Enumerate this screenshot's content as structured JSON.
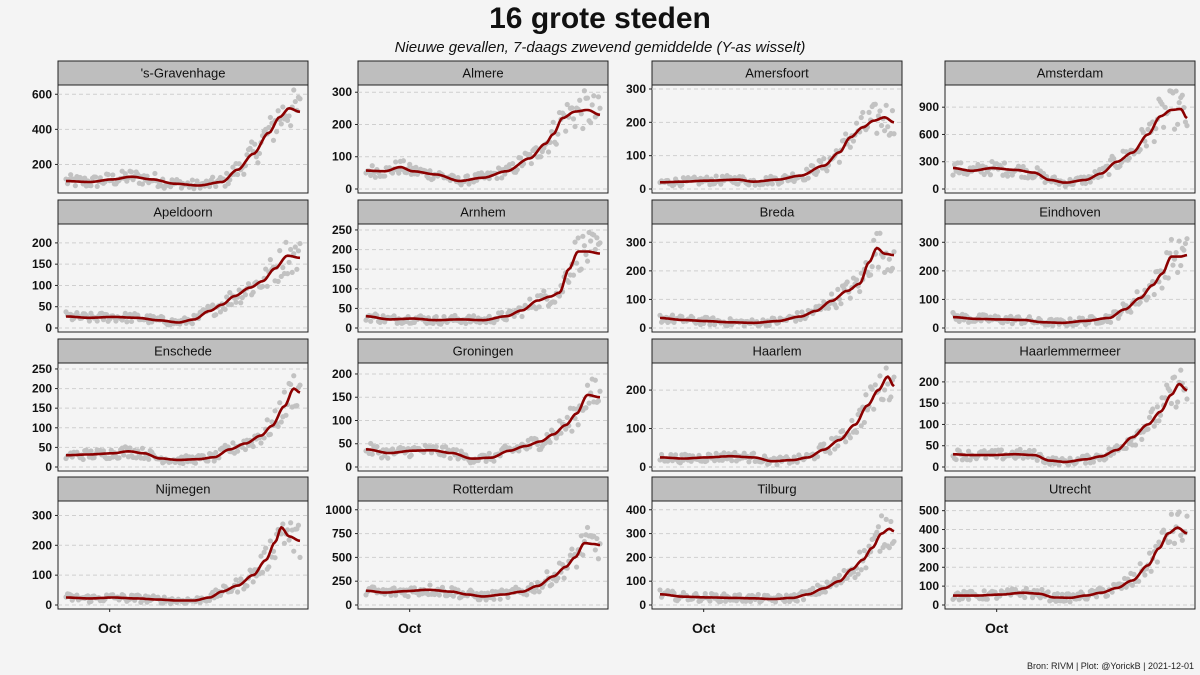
{
  "title": "16 grote steden",
  "subtitle": "Nieuwe gevallen, 7-daags zwevend gemiddelde (Y-as wisselt)",
  "source": "Bron: RIVM | Plot: @YorickB |  2021-12-01",
  "colors": {
    "line": "#8b0000",
    "points": "#c2c2c2",
    "strip": "#bebebe",
    "panel": "#f4f4f4",
    "grid": "#cfcfcf"
  },
  "chart_data": {
    "type": "line",
    "x_tick_label": "Oct",
    "x_range_days": [
      0,
      150
    ],
    "oct_day": 28,
    "grid": "horizontal dashed",
    "facets": [
      {
        "name": "'s-Gravenhage",
        "yticks": [
          200,
          400,
          600
        ],
        "ylim": [
          60,
          630
        ],
        "keypoints": [
          [
            0,
            105
          ],
          [
            15,
            100
          ],
          [
            30,
            115
          ],
          [
            42,
            130
          ],
          [
            55,
            115
          ],
          [
            70,
            90
          ],
          [
            85,
            80
          ],
          [
            100,
            100
          ],
          [
            110,
            170
          ],
          [
            120,
            260
          ],
          [
            130,
            380
          ],
          [
            137,
            470
          ],
          [
            143,
            520
          ],
          [
            150,
            500
          ]
        ]
      },
      {
        "name": "Almere",
        "yticks": [
          0,
          100,
          200,
          300
        ],
        "ylim": [
          0,
          310
        ],
        "keypoints": [
          [
            0,
            57
          ],
          [
            12,
            55
          ],
          [
            22,
            68
          ],
          [
            30,
            55
          ],
          [
            45,
            45
          ],
          [
            60,
            25
          ],
          [
            75,
            35
          ],
          [
            90,
            55
          ],
          [
            105,
            95
          ],
          [
            115,
            140
          ],
          [
            120,
            170
          ],
          [
            126,
            220
          ],
          [
            134,
            240
          ],
          [
            142,
            245
          ],
          [
            150,
            230
          ]
        ]
      },
      {
        "name": "Amersfoort",
        "yticks": [
          0,
          100,
          200,
          300
        ],
        "ylim": [
          0,
          300
        ],
        "keypoints": [
          [
            0,
            20
          ],
          [
            15,
            22
          ],
          [
            30,
            25
          ],
          [
            50,
            28
          ],
          [
            60,
            22
          ],
          [
            75,
            28
          ],
          [
            90,
            40
          ],
          [
            105,
            70
          ],
          [
            115,
            110
          ],
          [
            122,
            155
          ],
          [
            130,
            185
          ],
          [
            137,
            205
          ],
          [
            144,
            215
          ],
          [
            150,
            200
          ]
        ]
      },
      {
        "name": "Amsterdam",
        "yticks": [
          0,
          300,
          600,
          900
        ],
        "ylim": [
          0,
          1100
        ],
        "keypoints": [
          [
            0,
            230
          ],
          [
            12,
            200
          ],
          [
            25,
            230
          ],
          [
            40,
            210
          ],
          [
            52,
            180
          ],
          [
            62,
            100
          ],
          [
            72,
            70
          ],
          [
            85,
            100
          ],
          [
            95,
            170
          ],
          [
            105,
            300
          ],
          [
            115,
            400
          ],
          [
            125,
            600
          ],
          [
            133,
            800
          ],
          [
            140,
            870
          ],
          [
            146,
            880
          ],
          [
            150,
            780
          ]
        ]
      },
      {
        "name": "Apeldoorn",
        "yticks": [
          0,
          50,
          100,
          150,
          200
        ],
        "ylim": [
          0,
          235
        ],
        "keypoints": [
          [
            0,
            27
          ],
          [
            15,
            24
          ],
          [
            30,
            26
          ],
          [
            45,
            24
          ],
          [
            60,
            18
          ],
          [
            72,
            13
          ],
          [
            82,
            20
          ],
          [
            92,
            40
          ],
          [
            100,
            55
          ],
          [
            108,
            75
          ],
          [
            118,
            95
          ],
          [
            126,
            110
          ],
          [
            134,
            140
          ],
          [
            142,
            170
          ],
          [
            150,
            165
          ]
        ]
      },
      {
        "name": "Arnhem",
        "yticks": [
          0,
          50,
          100,
          150,
          200,
          250
        ],
        "ylim": [
          0,
          255
        ],
        "keypoints": [
          [
            0,
            30
          ],
          [
            15,
            22
          ],
          [
            30,
            24
          ],
          [
            45,
            20
          ],
          [
            60,
            22
          ],
          [
            75,
            20
          ],
          [
            90,
            30
          ],
          [
            100,
            45
          ],
          [
            110,
            70
          ],
          [
            118,
            80
          ],
          [
            124,
            90
          ],
          [
            130,
            150
          ],
          [
            136,
            195
          ],
          [
            142,
            195
          ],
          [
            150,
            190
          ]
        ]
      },
      {
        "name": "Breda",
        "yticks": [
          0,
          100,
          200,
          300
        ],
        "ylim": [
          0,
          350
        ],
        "keypoints": [
          [
            0,
            35
          ],
          [
            15,
            28
          ],
          [
            30,
            24
          ],
          [
            45,
            20
          ],
          [
            60,
            18
          ],
          [
            75,
            24
          ],
          [
            90,
            40
          ],
          [
            100,
            60
          ],
          [
            110,
            95
          ],
          [
            120,
            130
          ],
          [
            128,
            155
          ],
          [
            134,
            230
          ],
          [
            139,
            280
          ],
          [
            144,
            260
          ],
          [
            150,
            255
          ]
        ]
      },
      {
        "name": "Eindhoven",
        "yticks": [
          0,
          100,
          200,
          300
        ],
        "ylim": [
          0,
          350
        ],
        "keypoints": [
          [
            0,
            38
          ],
          [
            15,
            32
          ],
          [
            30,
            30
          ],
          [
            45,
            28
          ],
          [
            58,
            20
          ],
          [
            70,
            18
          ],
          [
            85,
            25
          ],
          [
            100,
            35
          ],
          [
            110,
            65
          ],
          [
            120,
            105
          ],
          [
            128,
            150
          ],
          [
            134,
            190
          ],
          [
            140,
            250
          ],
          [
            146,
            250
          ],
          [
            150,
            255
          ]
        ]
      },
      {
        "name": "Enschede",
        "yticks": [
          0,
          50,
          100,
          150,
          200,
          250
        ],
        "ylim": [
          0,
          255
        ],
        "keypoints": [
          [
            0,
            30
          ],
          [
            15,
            32
          ],
          [
            30,
            35
          ],
          [
            40,
            40
          ],
          [
            50,
            35
          ],
          [
            60,
            22
          ],
          [
            72,
            18
          ],
          [
            85,
            20
          ],
          [
            95,
            25
          ],
          [
            105,
            45
          ],
          [
            115,
            60
          ],
          [
            125,
            80
          ],
          [
            132,
            105
          ],
          [
            140,
            155
          ],
          [
            146,
            200
          ],
          [
            150,
            190
          ]
        ]
      },
      {
        "name": "Groningen",
        "yticks": [
          0,
          50,
          100,
          150,
          200
        ],
        "ylim": [
          0,
          215
        ],
        "keypoints": [
          [
            0,
            38
          ],
          [
            15,
            30
          ],
          [
            30,
            35
          ],
          [
            42,
            36
          ],
          [
            55,
            30
          ],
          [
            68,
            18
          ],
          [
            80,
            20
          ],
          [
            92,
            35
          ],
          [
            102,
            45
          ],
          [
            112,
            55
          ],
          [
            120,
            70
          ],
          [
            128,
            90
          ],
          [
            135,
            115
          ],
          [
            142,
            155
          ],
          [
            150,
            150
          ]
        ]
      },
      {
        "name": "Haarlem",
        "yticks": [
          0,
          100,
          200
        ],
        "ylim": [
          0,
          260
        ],
        "keypoints": [
          [
            0,
            25
          ],
          [
            15,
            22
          ],
          [
            30,
            25
          ],
          [
            45,
            28
          ],
          [
            60,
            25
          ],
          [
            72,
            15
          ],
          [
            85,
            18
          ],
          [
            95,
            25
          ],
          [
            105,
            45
          ],
          [
            115,
            70
          ],
          [
            125,
            110
          ],
          [
            133,
            160
          ],
          [
            140,
            200
          ],
          [
            146,
            235
          ],
          [
            150,
            210
          ]
        ]
      },
      {
        "name": "Haarlemmermeer",
        "yticks": [
          0,
          50,
          100,
          150,
          200
        ],
        "ylim": [
          0,
          235
        ],
        "keypoints": [
          [
            0,
            30
          ],
          [
            12,
            28
          ],
          [
            25,
            28
          ],
          [
            40,
            30
          ],
          [
            52,
            28
          ],
          [
            62,
            15
          ],
          [
            72,
            12
          ],
          [
            85,
            18
          ],
          [
            95,
            25
          ],
          [
            105,
            40
          ],
          [
            115,
            70
          ],
          [
            125,
            100
          ],
          [
            133,
            130
          ],
          [
            140,
            170
          ],
          [
            145,
            195
          ],
          [
            150,
            180
          ]
        ]
      },
      {
        "name": "Nijmegen",
        "yticks": [
          0,
          100,
          200,
          300
        ],
        "ylim": [
          0,
          335
        ],
        "keypoints": [
          [
            0,
            25
          ],
          [
            15,
            22
          ],
          [
            30,
            25
          ],
          [
            45,
            22
          ],
          [
            60,
            18
          ],
          [
            72,
            15
          ],
          [
            82,
            15
          ],
          [
            92,
            25
          ],
          [
            100,
            45
          ],
          [
            110,
            65
          ],
          [
            120,
            100
          ],
          [
            128,
            150
          ],
          [
            134,
            210
          ],
          [
            138,
            260
          ],
          [
            143,
            230
          ],
          [
            150,
            215
          ]
        ]
      },
      {
        "name": "Rotterdam",
        "yticks": [
          0,
          250,
          500,
          750,
          1000
        ],
        "ylim": [
          0,
          1050
        ],
        "keypoints": [
          [
            0,
            150
          ],
          [
            12,
            130
          ],
          [
            25,
            145
          ],
          [
            40,
            160
          ],
          [
            55,
            140
          ],
          [
            65,
            110
          ],
          [
            75,
            90
          ],
          [
            88,
            110
          ],
          [
            100,
            140
          ],
          [
            110,
            200
          ],
          [
            120,
            300
          ],
          [
            128,
            400
          ],
          [
            134,
            500
          ],
          [
            140,
            650
          ],
          [
            146,
            640
          ],
          [
            150,
            630
          ]
        ]
      },
      {
        "name": "Tilburg",
        "yticks": [
          0,
          100,
          200,
          300,
          400
        ],
        "ylim": [
          0,
          420
        ],
        "keypoints": [
          [
            0,
            45
          ],
          [
            15,
            35
          ],
          [
            30,
            32
          ],
          [
            45,
            30
          ],
          [
            60,
            28
          ],
          [
            72,
            25
          ],
          [
            85,
            30
          ],
          [
            95,
            45
          ],
          [
            105,
            70
          ],
          [
            115,
            100
          ],
          [
            123,
            150
          ],
          [
            130,
            190
          ],
          [
            136,
            240
          ],
          [
            142,
            300
          ],
          [
            147,
            320
          ],
          [
            150,
            310
          ]
        ]
      },
      {
        "name": "Utrecht",
        "yticks": [
          0,
          100,
          200,
          300,
          400,
          500
        ],
        "ylim": [
          0,
          530
        ],
        "keypoints": [
          [
            0,
            50
          ],
          [
            15,
            50
          ],
          [
            30,
            55
          ],
          [
            45,
            65
          ],
          [
            55,
            60
          ],
          [
            65,
            40
          ],
          [
            75,
            38
          ],
          [
            85,
            50
          ],
          [
            95,
            65
          ],
          [
            105,
            90
          ],
          [
            115,
            130
          ],
          [
            125,
            210
          ],
          [
            132,
            300
          ],
          [
            138,
            380
          ],
          [
            144,
            410
          ],
          [
            150,
            380
          ]
        ]
      }
    ]
  }
}
